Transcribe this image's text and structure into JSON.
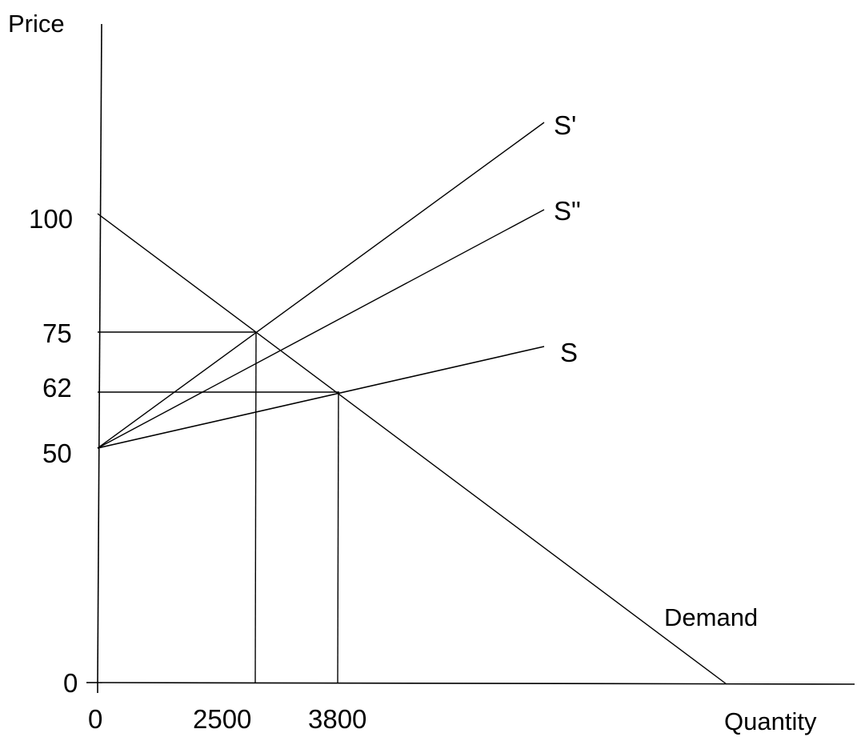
{
  "axes": {
    "y_title": "Price",
    "x_title": "Quantity"
  },
  "y_ticks": [
    "100",
    "75",
    "62",
    "50",
    "0"
  ],
  "x_ticks": [
    "0",
    "2500",
    "3800"
  ],
  "curves": {
    "s_prime": "S'",
    "s_double_prime": "S\"",
    "s": "S",
    "demand": "Demand"
  },
  "colors": {
    "line": "#000000",
    "background": "#ffffff"
  }
}
